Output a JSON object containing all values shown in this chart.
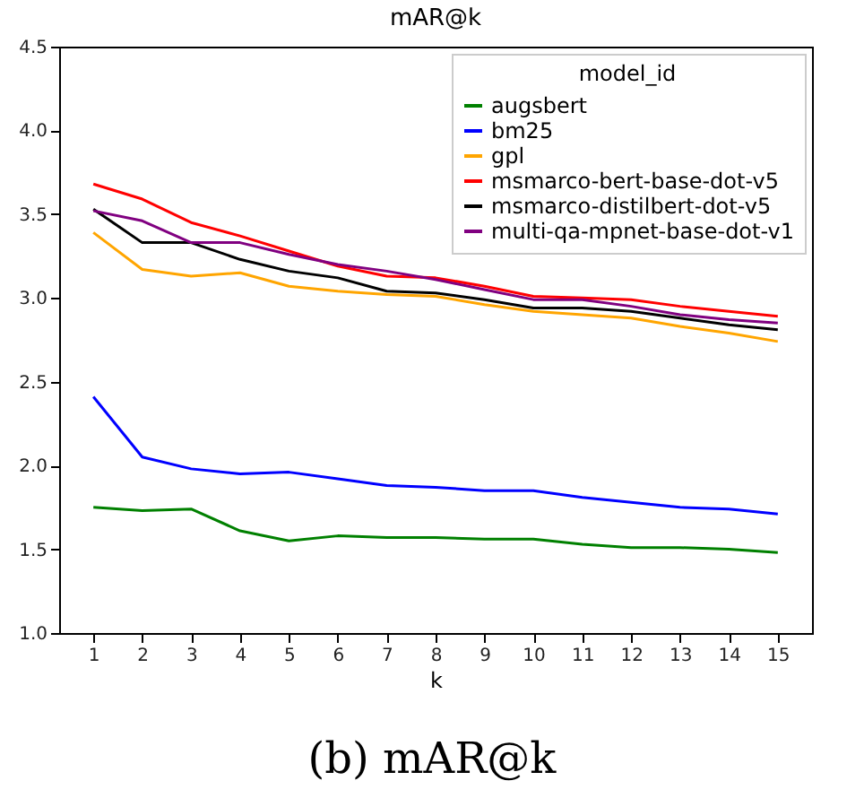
{
  "chart_data": {
    "type": "line",
    "title": "mAR@k",
    "xlabel": "k",
    "legend_title": "model_id",
    "legend": "top right",
    "grid": false,
    "x": [
      1,
      2,
      3,
      4,
      5,
      6,
      7,
      8,
      9,
      10,
      11,
      12,
      13,
      14,
      15
    ],
    "xlim": [
      0.3,
      15.7
    ],
    "xticks": [
      1,
      2,
      3,
      4,
      5,
      6,
      7,
      8,
      9,
      10,
      11,
      12,
      13,
      14,
      15
    ],
    "ylim": [
      1.0,
      4.5
    ],
    "yticks": [
      {
        "value": 1.0,
        "label": "1.0"
      },
      {
        "value": 1.5,
        "label": "1.5"
      },
      {
        "value": 2.0,
        "label": "2.0"
      },
      {
        "value": 2.5,
        "label": "2.5"
      },
      {
        "value": 3.0,
        "label": "3.0"
      },
      {
        "value": 3.5,
        "label": "3.5"
      },
      {
        "value": 4.0,
        "label": "4.0"
      },
      {
        "value": 4.5,
        "label": "4.5"
      }
    ],
    "annotations": [
      "(b) mAR@k"
    ],
    "series": [
      {
        "name": "augsbert",
        "color": "#008000",
        "values": [
          1.75,
          1.73,
          1.74,
          1.61,
          1.55,
          1.58,
          1.57,
          1.57,
          1.56,
          1.56,
          1.53,
          1.51,
          1.51,
          1.5,
          1.48
        ]
      },
      {
        "name": "bm25",
        "color": "#0000ff",
        "values": [
          2.41,
          2.05,
          1.98,
          1.95,
          1.96,
          1.92,
          1.88,
          1.87,
          1.85,
          1.85,
          1.81,
          1.78,
          1.75,
          1.74,
          1.71
        ]
      },
      {
        "name": "gpl",
        "color": "#ffa500",
        "values": [
          3.39,
          3.17,
          3.13,
          3.15,
          3.07,
          3.04,
          3.02,
          3.01,
          2.96,
          2.92,
          2.9,
          2.88,
          2.83,
          2.79,
          2.74
        ]
      },
      {
        "name": "msmarco-bert-base-dot-v5",
        "color": "#ff0000",
        "values": [
          3.68,
          3.59,
          3.45,
          3.37,
          3.28,
          3.19,
          3.13,
          3.12,
          3.07,
          3.01,
          3.0,
          2.99,
          2.95,
          2.92,
          2.89
        ]
      },
      {
        "name": "msmarco-distilbert-dot-v5",
        "color": "#000000",
        "values": [
          3.53,
          3.33,
          3.33,
          3.23,
          3.16,
          3.12,
          3.04,
          3.03,
          2.99,
          2.94,
          2.94,
          2.92,
          2.88,
          2.84,
          2.81
        ]
      },
      {
        "name": "multi-qa-mpnet-base-dot-v1",
        "color": "#800080",
        "values": [
          3.52,
          3.46,
          3.33,
          3.33,
          3.26,
          3.2,
          3.16,
          3.11,
          3.05,
          2.99,
          2.99,
          2.95,
          2.9,
          2.87,
          2.85
        ]
      }
    ]
  }
}
